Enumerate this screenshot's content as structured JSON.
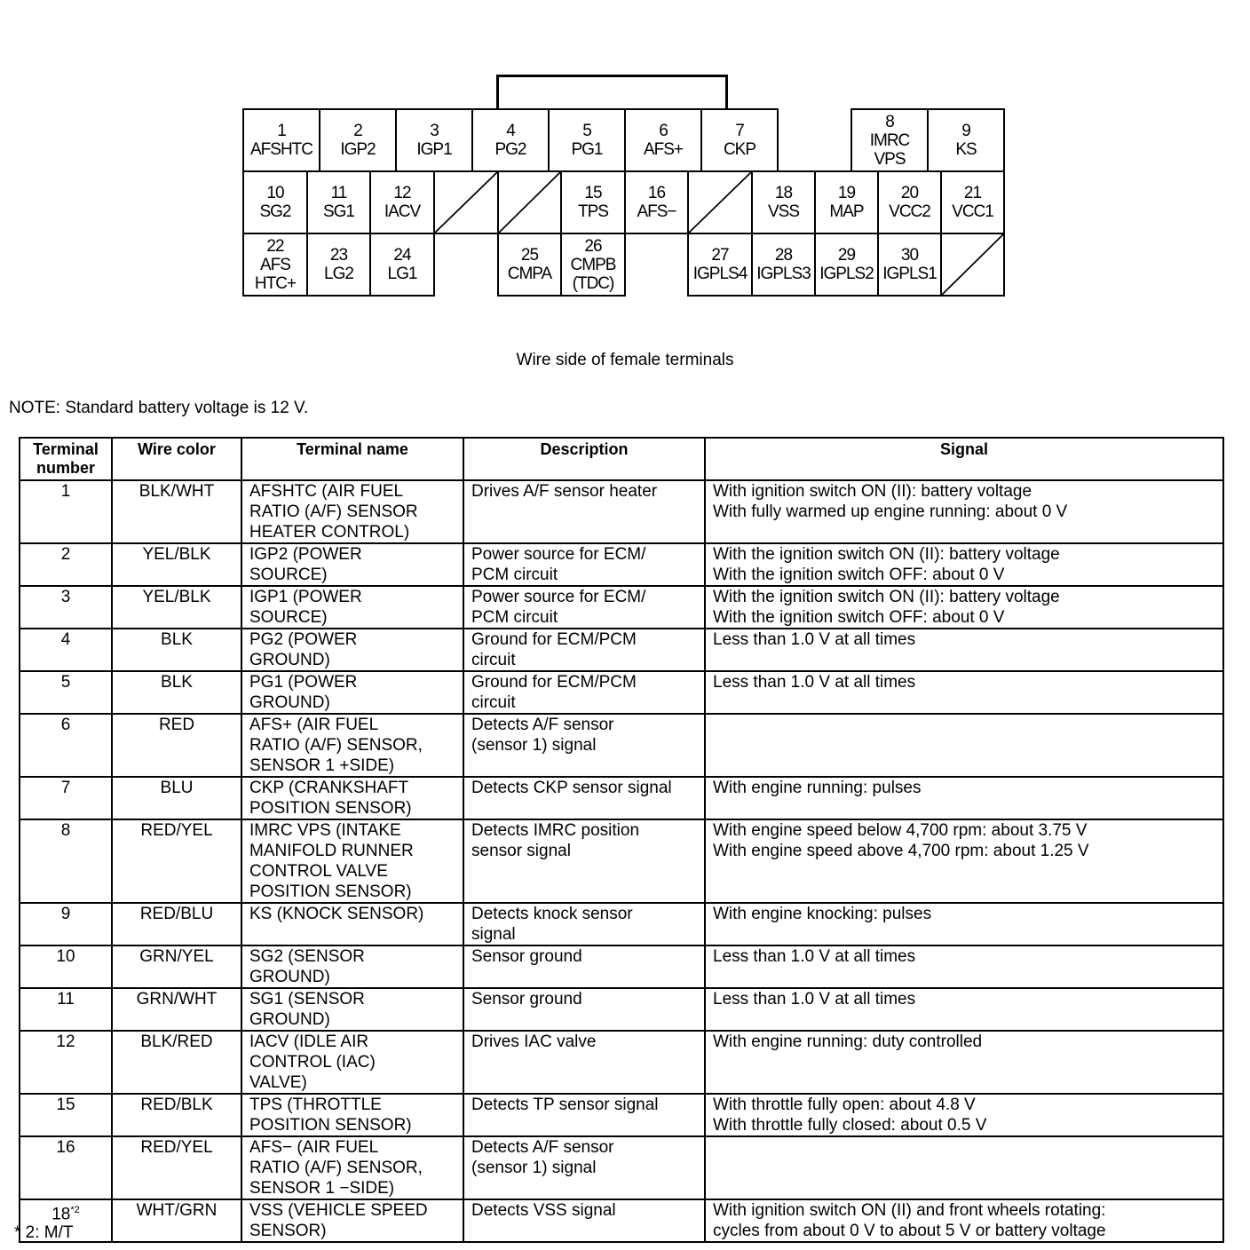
{
  "connector": {
    "cells": [
      {
        "num": "1",
        "name": "AFSHTC"
      },
      {
        "num": "2",
        "name": "IGP2"
      },
      {
        "num": "3",
        "name": "IGP1"
      },
      {
        "num": "4",
        "name": "PG2"
      },
      {
        "num": "5",
        "name": "PG1"
      },
      {
        "num": "6",
        "name": "AFS+"
      },
      {
        "num": "7",
        "name": "CKP"
      },
      {
        "num": "8",
        "name": "IMRC\nVPS"
      },
      {
        "num": "9",
        "name": "KS"
      },
      {
        "num": "10",
        "name": "SG2"
      },
      {
        "num": "11",
        "name": "SG1"
      },
      {
        "num": "12",
        "name": "IACV"
      },
      {
        "num": "15",
        "name": "TPS"
      },
      {
        "num": "16",
        "name": "AFS−"
      },
      {
        "num": "18",
        "name": "VSS"
      },
      {
        "num": "19",
        "name": "MAP"
      },
      {
        "num": "20",
        "name": "VCC2"
      },
      {
        "num": "21",
        "name": "VCC1"
      },
      {
        "num": "22",
        "name": "AFS\nHTC+"
      },
      {
        "num": "23",
        "name": "LG2"
      },
      {
        "num": "24",
        "name": "LG1"
      },
      {
        "num": "25",
        "name": "CMPA"
      },
      {
        "num": "26",
        "name": "CMPB\n(TDC)"
      },
      {
        "num": "27",
        "name": "IGPLS4"
      },
      {
        "num": "28",
        "name": "IGPLS3"
      },
      {
        "num": "29",
        "name": "IGPLS2"
      },
      {
        "num": "30",
        "name": "IGPLS1"
      }
    ],
    "caption": "Wire side of female terminals"
  },
  "note": "NOTE: Standard battery voltage is 12 V.",
  "table": {
    "headers": [
      "Terminal\nnumber",
      "Wire color",
      "Terminal name",
      "Description",
      "Signal"
    ],
    "rows": [
      {
        "num": "1",
        "color": "BLK/WHT",
        "name": "AFSHTC (AIR FUEL\nRATIO (A/F) SENSOR\nHEATER CONTROL)",
        "desc": "Drives A/F sensor heater",
        "signal": "With ignition switch ON (II): battery voltage\nWith fully warmed up engine running: about 0 V"
      },
      {
        "num": "2",
        "color": "YEL/BLK",
        "name": "IGP2 (POWER\nSOURCE)",
        "desc": "Power source for ECM/\nPCM circuit",
        "signal": "With the ignition switch ON (II): battery voltage\nWith the ignition switch OFF: about 0 V"
      },
      {
        "num": "3",
        "color": "YEL/BLK",
        "name": "IGP1 (POWER\nSOURCE)",
        "desc": "Power source for ECM/\nPCM circuit",
        "signal": "With the ignition switch ON (II): battery voltage\nWith the ignition switch OFF: about 0 V"
      },
      {
        "num": "4",
        "color": "BLK",
        "name": "PG2 (POWER\nGROUND)",
        "desc": "Ground for ECM/PCM\ncircuit",
        "signal": "Less than 1.0 V at all times"
      },
      {
        "num": "5",
        "color": "BLK",
        "name": "PG1 (POWER\nGROUND)",
        "desc": "Ground for ECM/PCM\ncircuit",
        "signal": "Less than 1.0 V at all times"
      },
      {
        "num": "6",
        "color": "RED",
        "name": "AFS+ (AIR FUEL\nRATIO (A/F) SENSOR,\nSENSOR 1 +SIDE)",
        "desc": "Detects A/F sensor\n(sensor 1) signal",
        "signal": ""
      },
      {
        "num": "7",
        "color": "BLU",
        "name": "CKP (CRANKSHAFT\nPOSITION SENSOR)",
        "desc": "Detects CKP sensor signal",
        "signal": "With engine running: pulses"
      },
      {
        "num": "8",
        "color": "RED/YEL",
        "name": "IMRC VPS (INTAKE\nMANIFOLD RUNNER\nCONTROL VALVE\nPOSITION SENSOR)",
        "desc": "Detects IMRC position\nsensor signal",
        "signal": "With engine speed below 4,700 rpm: about 3.75 V\nWith engine speed above 4,700 rpm: about 1.25 V"
      },
      {
        "num": "9",
        "color": "RED/BLU",
        "name": "KS (KNOCK SENSOR)",
        "desc": "Detects knock sensor\nsignal",
        "signal": "With engine knocking: pulses"
      },
      {
        "num": "10",
        "color": "GRN/YEL",
        "name": "SG2 (SENSOR\nGROUND)",
        "desc": "Sensor ground",
        "signal": "Less than 1.0 V at all times"
      },
      {
        "num": "11",
        "color": "GRN/WHT",
        "name": "SG1 (SENSOR\nGROUND)",
        "desc": "Sensor ground",
        "signal": "Less than 1.0 V at all times"
      },
      {
        "num": "12",
        "color": "BLK/RED",
        "name": "IACV (IDLE AIR\nCONTROL (IAC)\nVALVE)",
        "desc": "Drives IAC valve",
        "signal": "With engine running: duty controlled"
      },
      {
        "num": "15",
        "color": "RED/BLK",
        "name": "TPS (THROTTLE\nPOSITION SENSOR)",
        "desc": "Detects TP sensor signal",
        "signal": "With throttle fully open: about 4.8 V\nWith throttle fully closed: about 0.5 V"
      },
      {
        "num": "16",
        "color": "RED/YEL",
        "name": "AFS− (AIR FUEL\nRATIO (A/F) SENSOR,\nSENSOR 1 −SIDE)",
        "desc": "Detects A/F sensor\n(sensor 1) signal",
        "signal": ""
      },
      {
        "num": "18",
        "num_sup": "*2",
        "color": "WHT/GRN",
        "name": "VSS (VEHICLE SPEED\nSENSOR)",
        "desc": "Detects VSS signal",
        "signal": "With ignition switch ON (II) and front wheels rotating:\ncycles from about 0 V to about 5 V or battery voltage"
      }
    ]
  },
  "footnote": "* 2: M/T"
}
